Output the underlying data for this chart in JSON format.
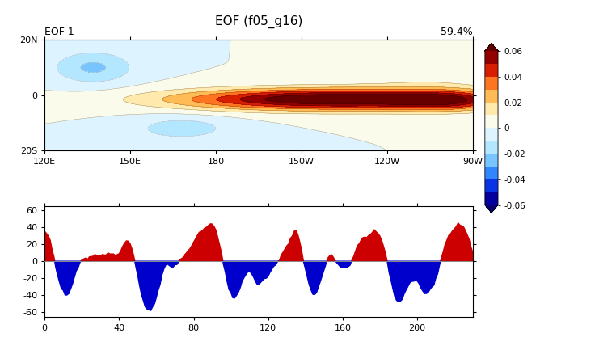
{
  "title": "EOF (f05_g16)",
  "eof_label": "EOF 1",
  "variance_label": "59.4%",
  "lon_min": 120,
  "lon_max": 270,
  "lat_min": -20,
  "lat_max": 20,
  "xtick_lons": [
    120,
    150,
    180,
    210,
    240,
    270
  ],
  "xtick_labels": [
    "120E",
    "150E",
    "180",
    "150W",
    "120W",
    "90W"
  ],
  "ytick_lats": [
    -20,
    0,
    20
  ],
  "ytick_labels": [
    "20S",
    "0",
    "20N"
  ],
  "cmap_levels": [
    -0.06,
    -0.05,
    -0.04,
    -0.03,
    -0.02,
    -0.01,
    0,
    0.01,
    0.02,
    0.03,
    0.04,
    0.05,
    0.06
  ],
  "colorbar_ticks": [
    -0.06,
    -0.04,
    -0.02,
    0,
    0.02,
    0.04,
    0.06
  ],
  "colorbar_labels": [
    "-0.06",
    "-0.04",
    "-0.02",
    "0",
    "0.02",
    "0.04",
    "0.06"
  ],
  "pc_xlim": [
    0,
    230
  ],
  "pc_ylim": [
    -65,
    65
  ],
  "pc_yticks": [
    -60,
    -40,
    -20,
    0,
    20,
    40,
    60
  ],
  "pc_xticks": [
    0,
    40,
    80,
    120,
    160,
    200
  ],
  "red_color": "#cc0000",
  "blue_color": "#0000cc",
  "cmap_colors": [
    [
      0.0,
      "#08006f"
    ],
    [
      0.08,
      "#0000cd"
    ],
    [
      0.17,
      "#1166ff"
    ],
    [
      0.25,
      "#55aaff"
    ],
    [
      0.33,
      "#99ddff"
    ],
    [
      0.42,
      "#cceeff"
    ],
    [
      0.5,
      "#f0f8ff"
    ],
    [
      0.56,
      "#fffde0"
    ],
    [
      0.63,
      "#ffe8aa"
    ],
    [
      0.71,
      "#ffbb55"
    ],
    [
      0.79,
      "#ff7722"
    ],
    [
      0.87,
      "#dd2200"
    ],
    [
      0.94,
      "#aa0000"
    ],
    [
      1.0,
      "#660000"
    ]
  ]
}
